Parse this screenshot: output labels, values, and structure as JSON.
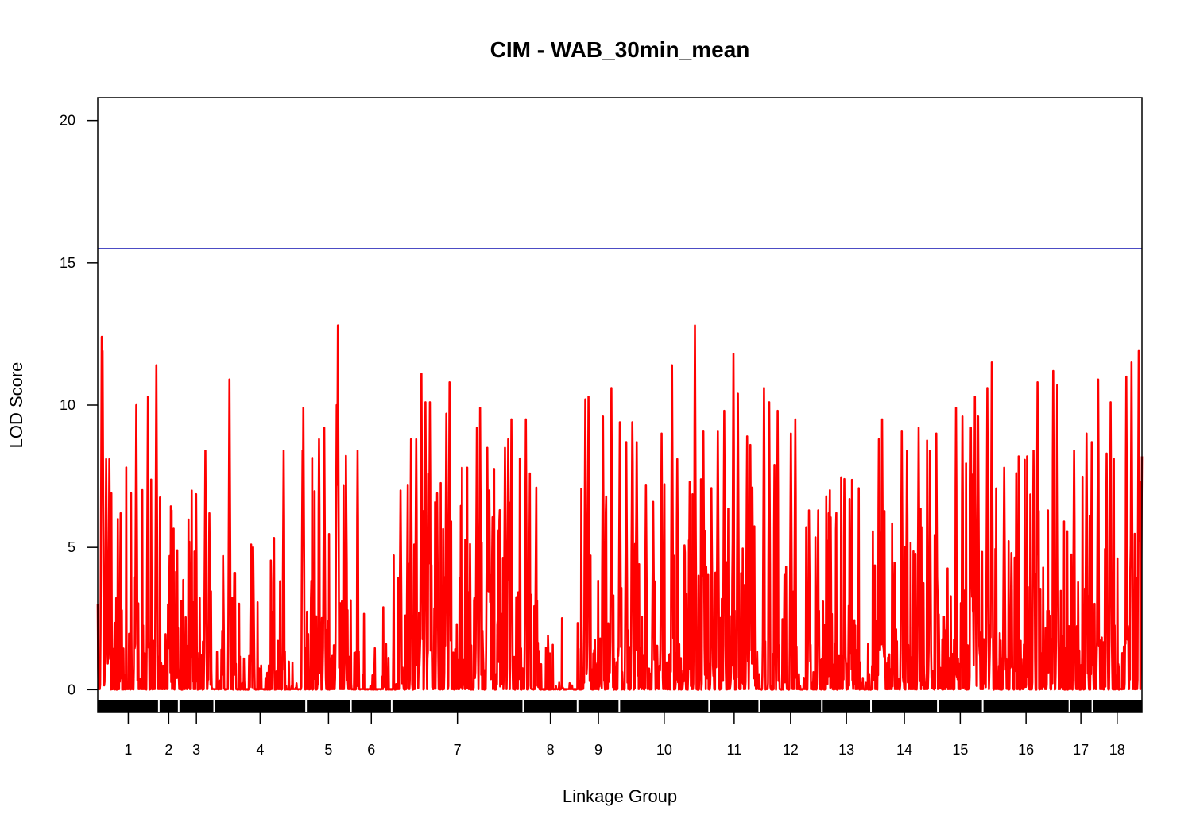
{
  "chart_data": {
    "type": "line",
    "title": "CIM - WAB_30min_mean",
    "xlabel": "Linkage Group",
    "ylabel": "LOD Score",
    "ylim": [
      -0.8,
      20.8
    ],
    "yticks": [
      0,
      5,
      10,
      15,
      20
    ],
    "threshold": 15.5,
    "colors": {
      "lod_line": "#ff0000",
      "threshold_line": "#3333bb",
      "marker_bar": "#000000"
    },
    "linkage_groups": [
      {
        "name": "1",
        "start": 0.0,
        "end": 0.0585
      },
      {
        "name": "2",
        "start": 0.0585,
        "end": 0.0775
      },
      {
        "name": "3",
        "start": 0.0775,
        "end": 0.1115
      },
      {
        "name": "4",
        "start": 0.1115,
        "end": 0.1995
      },
      {
        "name": "5",
        "start": 0.1995,
        "end": 0.2425
      },
      {
        "name": "6",
        "start": 0.2425,
        "end": 0.2815
      },
      {
        "name": "7",
        "start": 0.2815,
        "end": 0.4075
      },
      {
        "name": "8",
        "start": 0.4075,
        "end": 0.4595
      },
      {
        "name": "9",
        "start": 0.4595,
        "end": 0.4995
      },
      {
        "name": "10",
        "start": 0.4995,
        "end": 0.5855
      },
      {
        "name": "11",
        "start": 0.5855,
        "end": 0.6335
      },
      {
        "name": "12",
        "start": 0.6335,
        "end": 0.6935
      },
      {
        "name": "13",
        "start": 0.6935,
        "end": 0.7405
      },
      {
        "name": "14",
        "start": 0.7405,
        "end": 0.8045
      },
      {
        "name": "15",
        "start": 0.8045,
        "end": 0.8475
      },
      {
        "name": "16",
        "start": 0.8475,
        "end": 0.9305
      },
      {
        "name": "17",
        "start": 0.9305,
        "end": 0.9525
      },
      {
        "name": "18",
        "start": 0.9525,
        "end": 1.0
      }
    ],
    "peaks": [
      [
        0.004,
        12.4
      ],
      [
        0.0045,
        11.9
      ],
      [
        0.008,
        8.1
      ],
      [
        0.011,
        8.1
      ],
      [
        0.022,
        6.2
      ],
      [
        0.037,
        10.0
      ],
      [
        0.048,
        10.3
      ],
      [
        0.056,
        11.4
      ],
      [
        0.069,
        4.7
      ],
      [
        0.076,
        4.9
      ],
      [
        0.09,
        7.0
      ],
      [
        0.103,
        8.4
      ],
      [
        0.107,
        6.2
      ],
      [
        0.12,
        4.7
      ],
      [
        0.126,
        7.6
      ],
      [
        0.126,
        10.9
      ],
      [
        0.131,
        5.7
      ],
      [
        0.147,
        5.1
      ],
      [
        0.149,
        5.0
      ],
      [
        0.168,
        3.8
      ],
      [
        0.178,
        8.4
      ],
      [
        0.196,
        8.4
      ],
      [
        0.197,
        9.9
      ],
      [
        0.212,
        8.8
      ],
      [
        0.217,
        9.2
      ],
      [
        0.229,
        10.0
      ],
      [
        0.23,
        12.8
      ],
      [
        0.238,
        6.2
      ],
      [
        0.249,
        8.4
      ],
      [
        0.275,
        0.8
      ],
      [
        0.29,
        7.0
      ],
      [
        0.297,
        7.2
      ],
      [
        0.3,
        8.8
      ],
      [
        0.305,
        8.8
      ],
      [
        0.31,
        11.1
      ],
      [
        0.314,
        10.1
      ],
      [
        0.318,
        10.1
      ],
      [
        0.325,
        6.9
      ],
      [
        0.334,
        9.7
      ],
      [
        0.337,
        10.8
      ],
      [
        0.354,
        7.8
      ],
      [
        0.363,
        9.2
      ],
      [
        0.366,
        9.9
      ],
      [
        0.373,
        8.5
      ],
      [
        0.375,
        7.0
      ],
      [
        0.384,
        5.6
      ],
      [
        0.39,
        8.5
      ],
      [
        0.393,
        8.8
      ],
      [
        0.396,
        9.5
      ],
      [
        0.41,
        9.5
      ],
      [
        0.414,
        7.6
      ],
      [
        0.42,
        7.1
      ],
      [
        0.445,
        0.1
      ],
      [
        0.467,
        10.2
      ],
      [
        0.47,
        10.3
      ],
      [
        0.481,
        1.8
      ],
      [
        0.484,
        9.6
      ],
      [
        0.492,
        10.6
      ],
      [
        0.5,
        9.4
      ],
      [
        0.506,
        8.7
      ],
      [
        0.512,
        9.4
      ],
      [
        0.516,
        8.7
      ],
      [
        0.525,
        7.2
      ],
      [
        0.532,
        6.6
      ],
      [
        0.54,
        9.0
      ],
      [
        0.55,
        11.4
      ],
      [
        0.555,
        8.1
      ],
      [
        0.567,
        7.3
      ],
      [
        0.572,
        12.8
      ],
      [
        0.58,
        9.1
      ],
      [
        0.588,
        5.3
      ],
      [
        0.594,
        9.1
      ],
      [
        0.6,
        9.8
      ],
      [
        0.609,
        11.8
      ],
      [
        0.613,
        10.4
      ],
      [
        0.622,
        8.9
      ],
      [
        0.625,
        8.6
      ],
      [
        0.627,
        7.1
      ],
      [
        0.638,
        10.6
      ],
      [
        0.643,
        10.1
      ],
      [
        0.648,
        7.9
      ],
      [
        0.651,
        9.8
      ],
      [
        0.658,
        5.6
      ],
      [
        0.664,
        9.0
      ],
      [
        0.668,
        9.5
      ],
      [
        0.681,
        6.3
      ],
      [
        0.69,
        6.3
      ],
      [
        0.7,
        6.2
      ],
      [
        0.715,
        7.4
      ],
      [
        0.72,
        6.7
      ],
      [
        0.748,
        8.8
      ],
      [
        0.751,
        9.5
      ],
      [
        0.77,
        9.1
      ],
      [
        0.775,
        8.4
      ],
      [
        0.786,
        9.2
      ],
      [
        0.797,
        8.4
      ],
      [
        0.803,
        9.0
      ],
      [
        0.822,
        9.9
      ],
      [
        0.828,
        9.6
      ],
      [
        0.836,
        9.2
      ],
      [
        0.84,
        10.3
      ],
      [
        0.843,
        9.6
      ],
      [
        0.852,
        10.6
      ],
      [
        0.856,
        11.5
      ],
      [
        0.868,
        7.8
      ],
      [
        0.875,
        4.8
      ],
      [
        0.89,
        8.2
      ],
      [
        0.896,
        8.4
      ],
      [
        0.9,
        10.8
      ],
      [
        0.91,
        6.3
      ],
      [
        0.915,
        11.2
      ],
      [
        0.919,
        10.7
      ],
      [
        0.935,
        8.4
      ],
      [
        0.947,
        9.0
      ],
      [
        0.952,
        8.7
      ],
      [
        0.958,
        10.9
      ],
      [
        0.966,
        8.3
      ],
      [
        0.97,
        10.1
      ],
      [
        0.985,
        11.0
      ],
      [
        0.99,
        11.5
      ],
      [
        0.997,
        11.9
      ],
      [
        1.001,
        6.9
      ],
      [
        1.011,
        7.4
      ],
      [
        1.017,
        7.6
      ],
      [
        1.022,
        8.2
      ]
    ]
  }
}
